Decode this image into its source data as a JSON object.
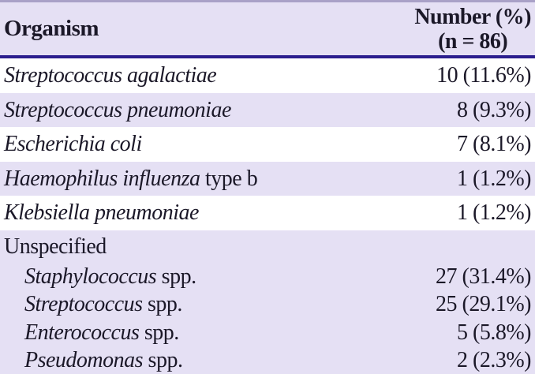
{
  "header": {
    "organism": "Organism",
    "number_label": "Number (%)",
    "n_label": "(n = 86)"
  },
  "rows": [
    {
      "name_italic": "Streptococcus agalactiae",
      "name_plain": "",
      "value": "10 (11.6%)"
    },
    {
      "name_italic": "Streptococcus pneumoniae",
      "name_plain": "",
      "value": "8 (9.3%)"
    },
    {
      "name_italic": "Escherichia coli",
      "name_plain": "",
      "value": "7 (8.1%)"
    },
    {
      "name_italic": "Haemophilus influenza",
      "name_plain": " type b",
      "value": "1 (1.2%)"
    },
    {
      "name_italic": "Klebsiella pneumoniae",
      "name_plain": "",
      "value": "1 (1.2%)"
    }
  ],
  "group": {
    "label": "Unspecified",
    "rows": [
      {
        "name_italic": "Staphylococcus",
        "name_plain": " spp.",
        "value": "27 (31.4%)"
      },
      {
        "name_italic": "Streptococcus",
        "name_plain": " spp.",
        "value": "25 (29.1%)"
      },
      {
        "name_italic": "Enterococcus",
        "name_plain": " spp.",
        "value": "5 (5.8%)"
      },
      {
        "name_italic": "Pseudomonas",
        "name_plain": " spp.",
        "value": "2 (2.3%)"
      }
    ]
  },
  "colors": {
    "stripe": "#e5e0f4",
    "header_rule": "#2b1e8e",
    "top_rule": "#a9a1c7",
    "text": "#1b1828",
    "row_white": "#ffffff"
  }
}
